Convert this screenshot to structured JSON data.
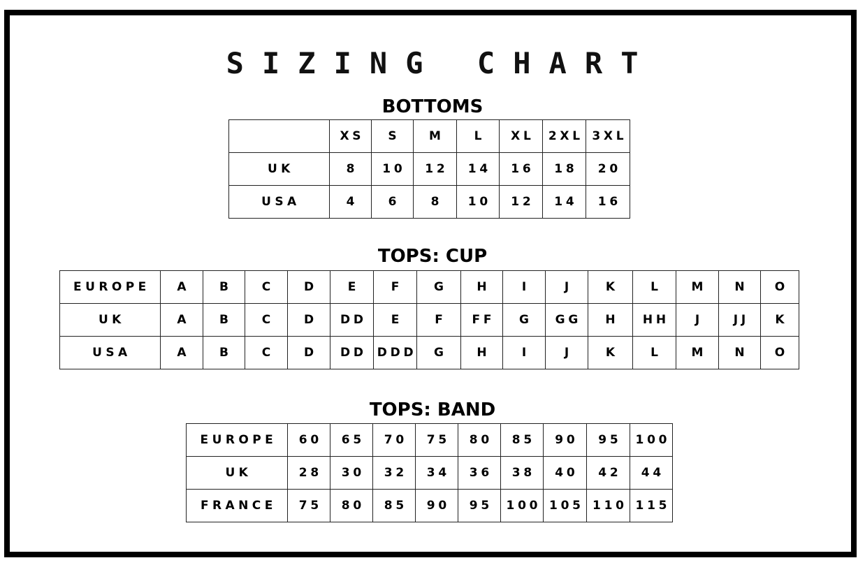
{
  "title": "SIZING CHART",
  "bottoms": {
    "heading": "BOTTOMS",
    "rows": [
      [
        "",
        "XS",
        "S",
        "M",
        "L",
        "XL",
        "2XL",
        "3XL"
      ],
      [
        "UK",
        "8",
        "10",
        "12",
        "14",
        "16",
        "18",
        "20"
      ],
      [
        "USA",
        "4",
        "6",
        "8",
        "10",
        "12",
        "14",
        "16"
      ]
    ]
  },
  "tops_cup": {
    "heading": "TOPS: CUP",
    "rows": [
      [
        "EUROPE",
        "A",
        "B",
        "C",
        "D",
        "E",
        "F",
        "G",
        "H",
        "I",
        "J",
        "K",
        "L",
        "M",
        "N",
        "O"
      ],
      [
        "UK",
        "A",
        "B",
        "C",
        "D",
        "DD",
        "E",
        "F",
        "FF",
        "G",
        "GG",
        "H",
        "HH",
        "J",
        "JJ",
        "K"
      ],
      [
        "USA",
        "A",
        "B",
        "C",
        "D",
        "DD",
        "DDD",
        "G",
        "H",
        "I",
        "J",
        "K",
        "L",
        "M",
        "N",
        "O"
      ]
    ]
  },
  "tops_band": {
    "heading": "TOPS: BAND",
    "rows": [
      [
        "EUROPE",
        "60",
        "65",
        "70",
        "75",
        "80",
        "85",
        "90",
        "95",
        "100"
      ],
      [
        "UK",
        "28",
        "30",
        "32",
        "34",
        "36",
        "38",
        "40",
        "42",
        "44"
      ],
      [
        "FRANCE",
        "75",
        "80",
        "85",
        "90",
        "95",
        "100",
        "105",
        "110",
        "115"
      ]
    ]
  }
}
